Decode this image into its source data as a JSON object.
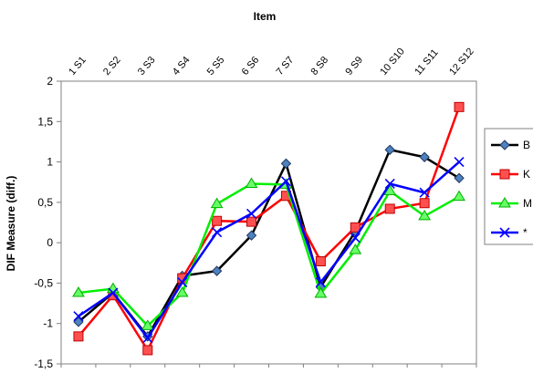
{
  "chart_data": {
    "type": "line",
    "title": "Item",
    "xlabel": "Item",
    "ylabel": "DIF Measure (diff.)",
    "categories": [
      "1 S1",
      "2 S2",
      "3 S3",
      "4 S4",
      "5 S5",
      "6 S6",
      "7 S7",
      "8 S8",
      "9 S9",
      "10 S10",
      "11 S11",
      "12 S12"
    ],
    "ylim": [
      -1.5,
      2
    ],
    "yticks": [
      "2",
      "1,5",
      "1",
      "0,5",
      "0",
      "-0,5",
      "-1",
      "-1,5"
    ],
    "grid": false,
    "legend_position": "right",
    "series": [
      {
        "name": "B",
        "color": "#000000",
        "marker": "diamond",
        "marker_color": "#4f81bd",
        "values": [
          -0.98,
          -0.62,
          -1.16,
          -0.41,
          -0.35,
          0.09,
          0.98,
          -0.55,
          0.14,
          1.15,
          1.06,
          0.8
        ]
      },
      {
        "name": "K",
        "color": "#ff0000",
        "marker": "square",
        "marker_color": "#ff5050",
        "values": [
          -1.16,
          -0.65,
          -1.33,
          -0.44,
          0.27,
          0.26,
          0.58,
          -0.23,
          0.19,
          0.42,
          0.49,
          1.68
        ]
      },
      {
        "name": "M",
        "color": "#00ee00",
        "marker": "triangle",
        "marker_color": "#66ff66",
        "values": [
          -0.62,
          -0.57,
          -1.03,
          -0.62,
          0.48,
          0.73,
          0.72,
          -0.63,
          -0.09,
          0.64,
          0.33,
          0.57
        ]
      },
      {
        "name": "*",
        "color": "#0000ff",
        "marker": "x",
        "marker_color": "#0000ff",
        "values": [
          -0.91,
          -0.62,
          -1.18,
          -0.49,
          0.13,
          0.36,
          0.76,
          -0.49,
          0.06,
          0.73,
          0.62,
          1.0
        ]
      }
    ]
  }
}
